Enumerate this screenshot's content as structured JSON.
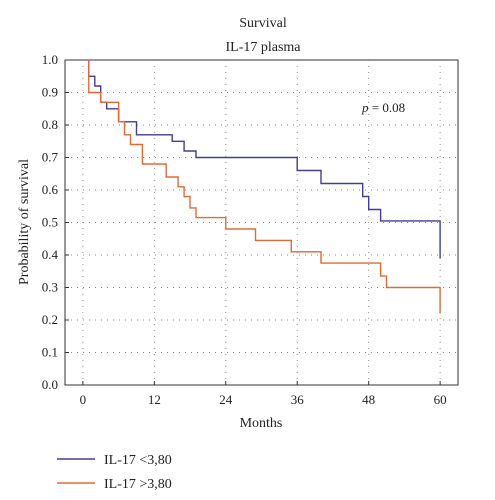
{
  "chart_data": {
    "type": "line",
    "step": true,
    "title": "Survival",
    "subtitle": "IL-17 plasma",
    "xlabel": "Months",
    "ylabel": "Probability of survival",
    "xlim": [
      -3,
      63
    ],
    "ylim": [
      0,
      1
    ],
    "xticks": [
      "0",
      "12",
      "24",
      "36",
      "48",
      "60"
    ],
    "yticks": [
      "0.0",
      "0.1",
      "0.2",
      "0.3",
      "0.4",
      "0.5",
      "0.6",
      "0.7",
      "0.8",
      "0.9",
      "1.0"
    ],
    "grid": true,
    "legend_position": "bottom-left",
    "annotation": {
      "italic": "p",
      "text": " = 0.08"
    },
    "series": [
      {
        "name": "IL-17 <3,80",
        "color": "#3f3f97",
        "x": [
          1,
          1,
          2,
          2,
          3,
          3,
          4,
          4,
          6,
          6,
          9,
          9,
          15,
          15,
          17,
          17,
          19,
          19,
          36,
          36,
          40,
          40,
          47,
          47,
          48,
          48,
          50,
          50,
          60,
          60
        ],
        "y": [
          1.0,
          0.95,
          0.95,
          0.92,
          0.92,
          0.87,
          0.87,
          0.85,
          0.85,
          0.81,
          0.81,
          0.77,
          0.77,
          0.75,
          0.75,
          0.72,
          0.72,
          0.7,
          0.7,
          0.66,
          0.66,
          0.62,
          0.62,
          0.58,
          0.58,
          0.54,
          0.54,
          0.505,
          0.505,
          0.39
        ]
      },
      {
        "name": "IL-17 >3,80",
        "color": "#e06a3a",
        "x": [
          1,
          1,
          3,
          3,
          6,
          6,
          7,
          7,
          8,
          8,
          10,
          10,
          14,
          14,
          16,
          16,
          17,
          17,
          18,
          18,
          19,
          19,
          24,
          24,
          29,
          29,
          35,
          35,
          40,
          40,
          50,
          50,
          51,
          51,
          60,
          60
        ],
        "y": [
          1.0,
          0.9,
          0.9,
          0.87,
          0.87,
          0.81,
          0.81,
          0.77,
          0.77,
          0.74,
          0.74,
          0.68,
          0.68,
          0.64,
          0.64,
          0.61,
          0.61,
          0.58,
          0.58,
          0.545,
          0.545,
          0.515,
          0.515,
          0.48,
          0.48,
          0.445,
          0.445,
          0.41,
          0.41,
          0.375,
          0.375,
          0.335,
          0.335,
          0.3,
          0.3,
          0.22
        ]
      }
    ]
  }
}
